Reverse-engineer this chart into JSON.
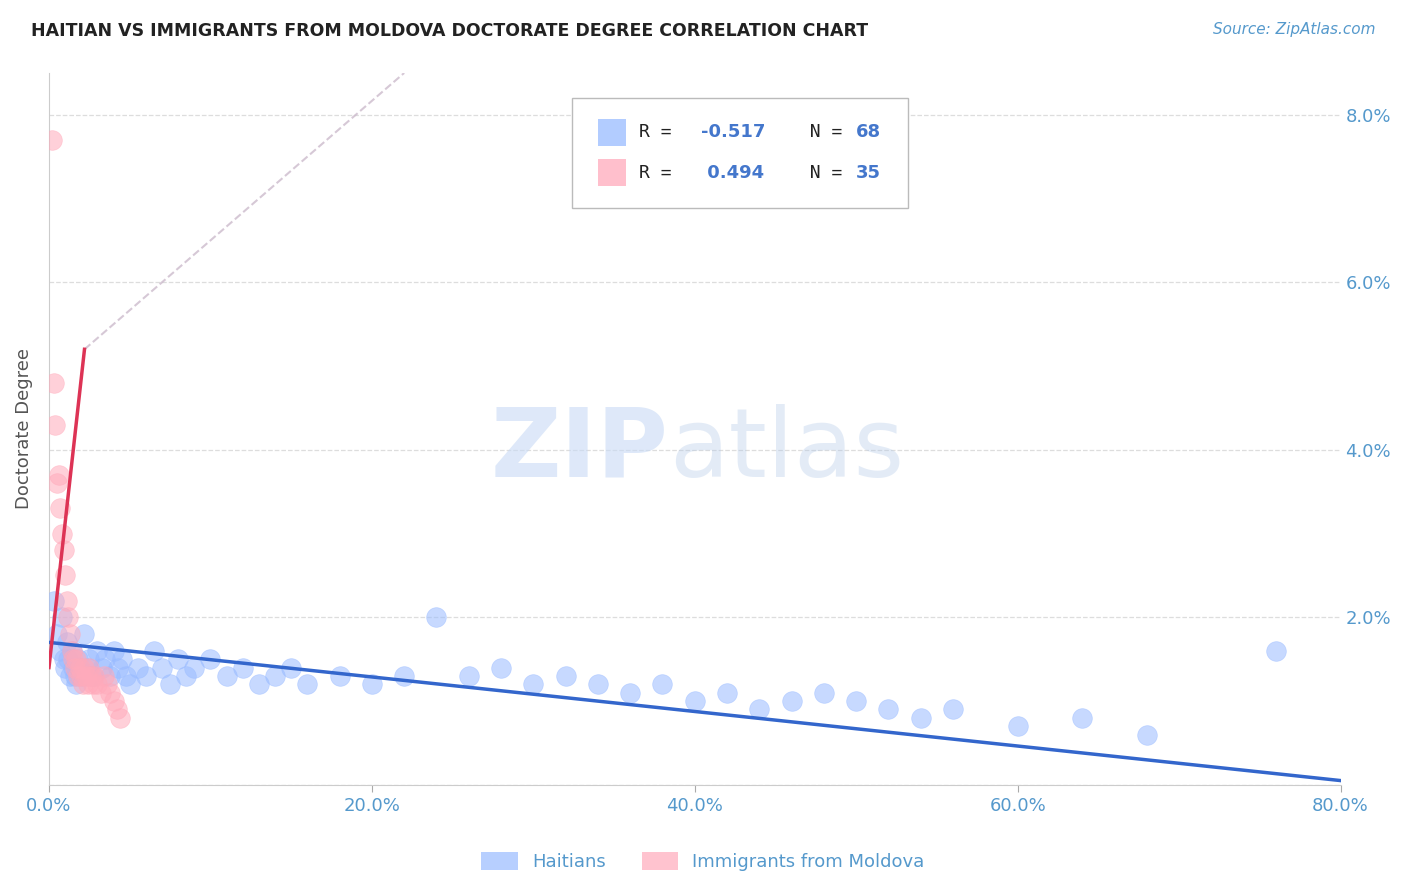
{
  "title": "HAITIAN VS IMMIGRANTS FROM MOLDOVA DOCTORATE DEGREE CORRELATION CHART",
  "source": "Source: ZipAtlas.com",
  "ylabel": "Doctorate Degree",
  "xmin": 0.0,
  "xmax": 80.0,
  "ymin": 0.0,
  "ymax": 8.5,
  "yticks": [
    0.0,
    2.0,
    4.0,
    6.0,
    8.0
  ],
  "ytick_labels": [
    "",
    "2.0%",
    "4.0%",
    "6.0%",
    "8.0%"
  ],
  "xticks": [
    0.0,
    20.0,
    40.0,
    60.0,
    80.0
  ],
  "xtick_labels": [
    "0.0%",
    "20.0%",
    "40.0%",
    "60.0%",
    "80.0%"
  ],
  "color_blue": "#99bbff",
  "color_pink": "#ffaabb",
  "color_trend_blue": "#3366cc",
  "color_trend_pink": "#dd3355",
  "color_trend_dash": "#ccbbcc",
  "color_axis_label": "#5599cc",
  "color_title": "#333333",
  "legend_r_color": "#333333",
  "legend_val_color": "#4477cc",
  "blue_x": [
    0.3,
    0.5,
    0.7,
    0.8,
    0.9,
    1.0,
    1.1,
    1.2,
    1.3,
    1.4,
    1.5,
    1.6,
    1.7,
    1.8,
    1.9,
    2.0,
    2.2,
    2.4,
    2.5,
    2.7,
    3.0,
    3.3,
    3.5,
    3.8,
    4.0,
    4.3,
    4.5,
    4.8,
    5.0,
    5.5,
    6.0,
    6.5,
    7.0,
    7.5,
    8.0,
    8.5,
    9.0,
    10.0,
    11.0,
    12.0,
    13.0,
    14.0,
    15.0,
    16.0,
    18.0,
    20.0,
    22.0,
    24.0,
    26.0,
    28.0,
    30.0,
    32.0,
    34.0,
    36.0,
    38.0,
    40.0,
    42.0,
    44.0,
    46.0,
    48.0,
    50.0,
    52.0,
    54.0,
    56.0,
    60.0,
    64.0,
    68.0,
    76.0
  ],
  "blue_y": [
    2.2,
    1.8,
    1.6,
    2.0,
    1.5,
    1.4,
    1.7,
    1.5,
    1.3,
    1.6,
    1.4,
    1.3,
    1.2,
    1.5,
    1.4,
    1.3,
    1.8,
    1.4,
    1.5,
    1.3,
    1.6,
    1.4,
    1.5,
    1.3,
    1.6,
    1.4,
    1.5,
    1.3,
    1.2,
    1.4,
    1.3,
    1.6,
    1.4,
    1.2,
    1.5,
    1.3,
    1.4,
    1.5,
    1.3,
    1.4,
    1.2,
    1.3,
    1.4,
    1.2,
    1.3,
    1.2,
    1.3,
    2.0,
    1.3,
    1.4,
    1.2,
    1.3,
    1.2,
    1.1,
    1.2,
    1.0,
    1.1,
    0.9,
    1.0,
    1.1,
    1.0,
    0.9,
    0.8,
    0.9,
    0.7,
    0.8,
    0.6,
    1.6
  ],
  "pink_x": [
    0.2,
    0.3,
    0.4,
    0.5,
    0.6,
    0.7,
    0.8,
    0.9,
    1.0,
    1.1,
    1.2,
    1.3,
    1.4,
    1.5,
    1.6,
    1.7,
    1.8,
    1.9,
    2.0,
    2.1,
    2.2,
    2.3,
    2.4,
    2.5,
    2.6,
    2.7,
    2.8,
    3.0,
    3.2,
    3.4,
    3.6,
    3.8,
    4.0,
    4.2,
    4.4
  ],
  "pink_y": [
    7.7,
    4.8,
    4.3,
    3.6,
    3.7,
    3.3,
    3.0,
    2.8,
    2.5,
    2.2,
    2.0,
    1.8,
    1.6,
    1.5,
    1.4,
    1.5,
    1.3,
    1.4,
    1.3,
    1.2,
    1.4,
    1.3,
    1.2,
    1.4,
    1.3,
    1.2,
    1.3,
    1.2,
    1.1,
    1.3,
    1.2,
    1.1,
    1.0,
    0.9,
    0.8
  ],
  "pink_trend_x0": 0.0,
  "pink_trend_y0": 1.4,
  "pink_trend_x1": 2.2,
  "pink_trend_y1": 5.2,
  "pink_dash_x0": 2.2,
  "pink_dash_y0": 5.2,
  "pink_dash_x1": 22.0,
  "pink_dash_y1": 8.5,
  "blue_trend_x0": 0.0,
  "blue_trend_y0": 1.7,
  "blue_trend_x1": 80.0,
  "blue_trend_y1": 0.05
}
